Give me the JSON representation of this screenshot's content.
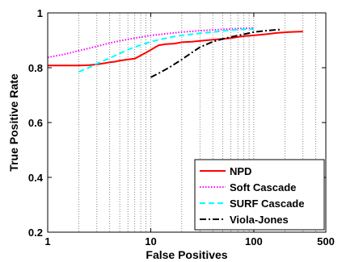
{
  "chart_data": {
    "type": "line",
    "xlabel": "False Positives",
    "ylabel": "True Positive Rate",
    "xscale": "log",
    "xlim": [
      1,
      500
    ],
    "ylim": [
      0.2,
      1.0
    ],
    "x_ticks": [
      1,
      10,
      100,
      500
    ],
    "x_tick_labels": [
      "1",
      "10",
      "100",
      "500"
    ],
    "y_ticks": [
      0.2,
      0.4,
      0.6,
      0.8,
      1.0
    ],
    "y_tick_labels": [
      "0.2",
      "0.4",
      "0.6",
      "0.8",
      "1"
    ],
    "grid": "x-log-dotted",
    "legend_position": "bottom-right",
    "series": [
      {
        "name": "NPD",
        "color": "#ff0000",
        "dash": "solid",
        "x": [
          1,
          1.5,
          2,
          2.5,
          3,
          3.5,
          4,
          4.5,
          5,
          6,
          7,
          8,
          9,
          10,
          11,
          12,
          14,
          17,
          20,
          25,
          30,
          40,
          50,
          60,
          70,
          80,
          100,
          130,
          170,
          220,
          300
        ],
        "y": [
          0.808,
          0.808,
          0.808,
          0.809,
          0.812,
          0.816,
          0.82,
          0.822,
          0.826,
          0.83,
          0.833,
          0.845,
          0.855,
          0.865,
          0.874,
          0.882,
          0.886,
          0.888,
          0.893,
          0.895,
          0.898,
          0.902,
          0.905,
          0.908,
          0.912,
          0.915,
          0.918,
          0.922,
          0.927,
          0.93,
          0.932
        ]
      },
      {
        "name": "Soft Cascade",
        "color": "#ff00ff",
        "dash": "dotted",
        "x": [
          1,
          1.5,
          2,
          3,
          4,
          5,
          7,
          10,
          15,
          20,
          30,
          50,
          70,
          100
        ],
        "y": [
          0.838,
          0.85,
          0.862,
          0.878,
          0.89,
          0.898,
          0.908,
          0.918,
          0.925,
          0.93,
          0.935,
          0.94,
          0.943,
          0.945
        ]
      },
      {
        "name": "SURF Cascade",
        "color": "#00ffff",
        "dash": "dashed",
        "x": [
          2,
          2.5,
          3,
          4,
          5,
          6,
          8,
          10,
          13,
          16,
          20,
          25,
          30,
          40,
          50,
          60,
          70,
          80,
          100
        ],
        "y": [
          0.785,
          0.8,
          0.815,
          0.835,
          0.852,
          0.866,
          0.883,
          0.895,
          0.905,
          0.912,
          0.918,
          0.922,
          0.926,
          0.93,
          0.934,
          0.937,
          0.939,
          0.94,
          0.941
        ]
      },
      {
        "name": "Viola-Jones",
        "color": "#000000",
        "dash": "dashdot",
        "x": [
          10,
          12,
          15,
          20,
          25,
          30,
          40,
          50,
          60,
          80,
          100,
          130,
          160,
          180
        ],
        "y": [
          0.765,
          0.78,
          0.8,
          0.83,
          0.855,
          0.875,
          0.895,
          0.905,
          0.912,
          0.922,
          0.93,
          0.935,
          0.938,
          0.939
        ]
      }
    ]
  }
}
